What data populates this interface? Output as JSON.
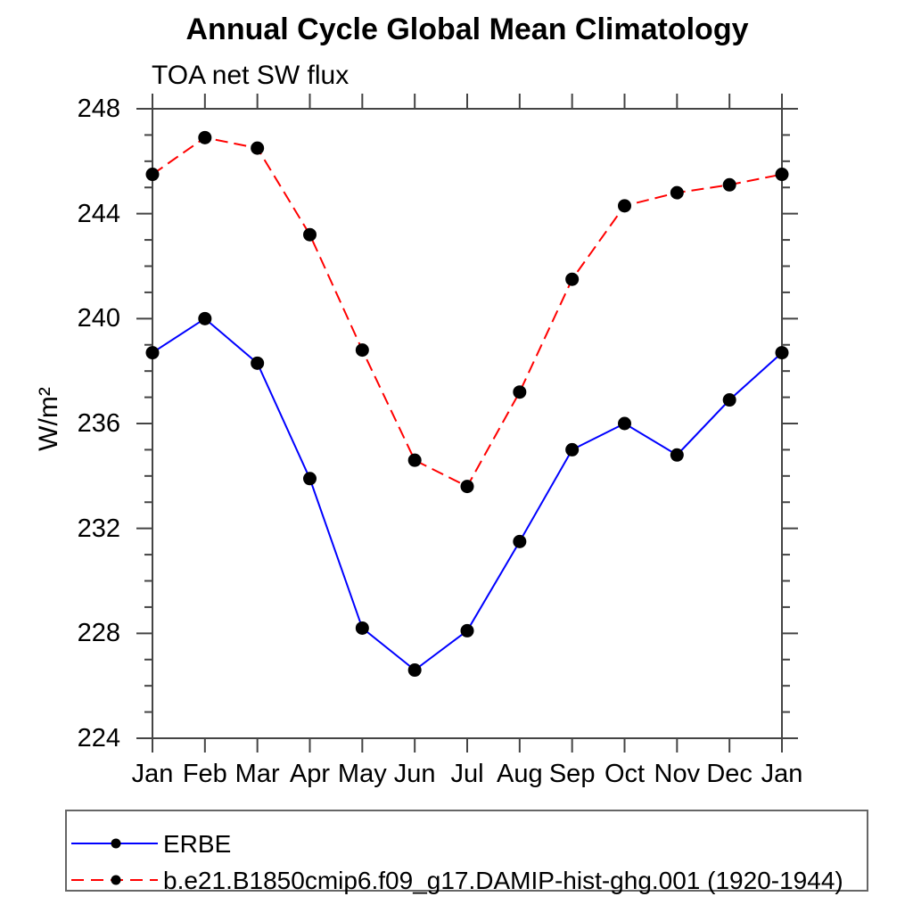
{
  "title": "Annual Cycle Global Mean Climatology",
  "subtitle": "TOA net SW flux",
  "y_axis_title": "W/m²",
  "chart_data": {
    "type": "line",
    "categories": [
      "Jan",
      "Feb",
      "Mar",
      "Apr",
      "May",
      "Jun",
      "Jul",
      "Aug",
      "Sep",
      "Oct",
      "Nov",
      "Dec",
      "Jan"
    ],
    "series": [
      {
        "name": "ERBE",
        "color": "#0000ff",
        "line_style": "solid",
        "values": [
          238.7,
          240.0,
          238.3,
          233.9,
          228.2,
          226.6,
          228.1,
          231.5,
          235.0,
          236.0,
          234.8,
          236.9,
          238.7
        ]
      },
      {
        "name": "b.e21.B1850cmip6.f09_g17.DAMIP-hist-ghg.001 (1920-1944)",
        "color": "#ff0000",
        "line_style": "dashed",
        "values": [
          245.5,
          246.9,
          246.5,
          243.2,
          238.8,
          234.6,
          233.6,
          237.2,
          241.5,
          244.3,
          244.8,
          245.1,
          245.5
        ]
      }
    ],
    "marker": "filled-circle",
    "marker_color": "#000000",
    "ylabel": "W/m²",
    "ylim": [
      224,
      248
    ],
    "y_major_ticks": [
      224,
      228,
      232,
      236,
      240,
      244,
      248
    ],
    "y_minor_step": 1,
    "grid": false,
    "legend_position": "bottom"
  }
}
